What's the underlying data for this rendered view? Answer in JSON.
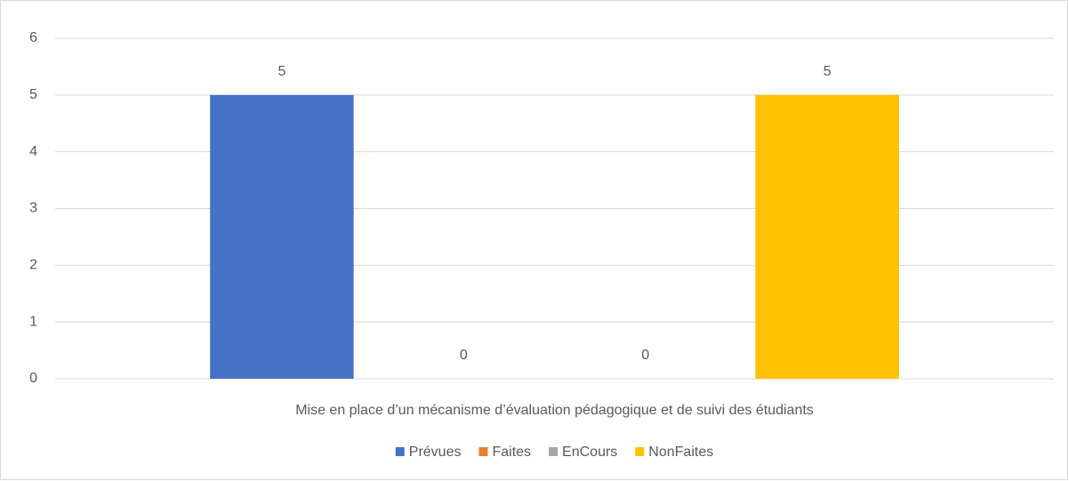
{
  "chart_data": {
    "type": "bar",
    "categories": [
      "Mise en place d’un mécanisme d’évaluation pédagogique et de suivi des étudiants"
    ],
    "series": [
      {
        "name": "Prévues",
        "color": "#4472c4",
        "values": [
          5
        ]
      },
      {
        "name": "Faites",
        "color": "#ed7d31",
        "values": [
          0
        ]
      },
      {
        "name": "EnCours",
        "color": "#a5a5a5",
        "values": [
          0
        ]
      },
      {
        "name": "NonFaites",
        "color": "#ffc000",
        "values": [
          5
        ]
      }
    ],
    "ylim": [
      0,
      6
    ],
    "yticks": [
      0,
      1,
      2,
      3,
      4,
      5,
      6
    ],
    "grid": true,
    "legend": "bottom",
    "data_labels": true
  }
}
